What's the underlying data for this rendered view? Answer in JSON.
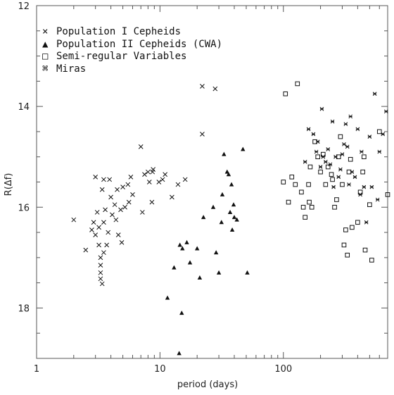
{
  "chart_data": {
    "type": "scatter",
    "title": "",
    "xlabel": "period (days)",
    "ylabel": "R(Δf)",
    "xscale": "log",
    "xlim": [
      1,
      700
    ],
    "ylim": [
      19,
      12
    ],
    "y_inverted": true,
    "grid": false,
    "legend_position": "top-left",
    "x_ticks": [
      "1",
      "10",
      "100"
    ],
    "y_ticks": [
      "12",
      "14",
      "16",
      "18"
    ],
    "series": [
      {
        "name": "Population I Cepheids",
        "marker": "cross",
        "points": [
          [
            2.0,
            16.25
          ],
          [
            2.5,
            16.85
          ],
          [
            2.8,
            16.45
          ],
          [
            2.9,
            16.3
          ],
          [
            3.0,
            16.55
          ],
          [
            3.0,
            15.4
          ],
          [
            3.1,
            16.1
          ],
          [
            3.2,
            16.4
          ],
          [
            3.2,
            16.75
          ],
          [
            3.3,
            17.0
          ],
          [
            3.3,
            17.15
          ],
          [
            3.3,
            17.3
          ],
          [
            3.3,
            17.42
          ],
          [
            3.4,
            17.52
          ],
          [
            3.4,
            15.65
          ],
          [
            3.5,
            15.45
          ],
          [
            3.5,
            16.3
          ],
          [
            3.5,
            16.9
          ],
          [
            3.6,
            16.05
          ],
          [
            3.7,
            16.75
          ],
          [
            3.8,
            16.5
          ],
          [
            3.9,
            15.45
          ],
          [
            4.0,
            15.8
          ],
          [
            4.1,
            16.15
          ],
          [
            4.3,
            15.95
          ],
          [
            4.4,
            16.25
          ],
          [
            4.5,
            15.65
          ],
          [
            4.6,
            16.55
          ],
          [
            4.8,
            16.05
          ],
          [
            4.9,
            16.7
          ],
          [
            5.0,
            15.6
          ],
          [
            5.2,
            16.0
          ],
          [
            5.5,
            15.55
          ],
          [
            5.6,
            15.9
          ],
          [
            5.8,
            15.4
          ],
          [
            6.0,
            15.75
          ],
          [
            7.0,
            14.8
          ],
          [
            7.2,
            16.1
          ],
          [
            7.5,
            15.35
          ],
          [
            8.0,
            15.3
          ],
          [
            8.2,
            15.5
          ],
          [
            8.6,
            15.9
          ],
          [
            8.7,
            15.3
          ],
          [
            8.8,
            15.25
          ],
          [
            9.8,
            15.5
          ],
          [
            10.5,
            15.45
          ],
          [
            11.0,
            15.35
          ],
          [
            12.5,
            15.8
          ],
          [
            14.0,
            15.55
          ],
          [
            16.0,
            15.45
          ],
          [
            22.0,
            13.6
          ],
          [
            22.0,
            14.55
          ],
          [
            28.0,
            13.65
          ]
        ]
      },
      {
        "name": "Population II Cepheids (CWA)",
        "marker": "triangle",
        "points": [
          [
            11.5,
            17.8
          ],
          [
            13.0,
            17.2
          ],
          [
            14.3,
            18.9
          ],
          [
            14.5,
            16.75
          ],
          [
            15.0,
            18.1
          ],
          [
            15.2,
            16.82
          ],
          [
            16.5,
            16.7
          ],
          [
            17.5,
            17.1
          ],
          [
            20.0,
            16.82
          ],
          [
            21.0,
            17.4
          ],
          [
            22.5,
            16.2
          ],
          [
            27.0,
            16.0
          ],
          [
            28.5,
            16.9
          ],
          [
            30.0,
            17.3
          ],
          [
            31.5,
            16.3
          ],
          [
            32.0,
            15.75
          ],
          [
            33.0,
            14.95
          ],
          [
            35.0,
            15.3
          ],
          [
            36.0,
            15.35
          ],
          [
            37.0,
            16.1
          ],
          [
            38.0,
            15.55
          ],
          [
            38.5,
            16.45
          ],
          [
            39.5,
            15.95
          ],
          [
            40.0,
            16.2
          ],
          [
            42.0,
            16.25
          ],
          [
            47.0,
            14.85
          ],
          [
            51.0,
            17.3
          ]
        ]
      },
      {
        "name": "Semi-regular Variables",
        "marker": "square",
        "points": [
          [
            100,
            15.5
          ],
          [
            104,
            13.75
          ],
          [
            110,
            15.9
          ],
          [
            117,
            15.4
          ],
          [
            125,
            15.55
          ],
          [
            130,
            13.55
          ],
          [
            140,
            15.7
          ],
          [
            145,
            16.0
          ],
          [
            150,
            16.2
          ],
          [
            160,
            15.55
          ],
          [
            162,
            15.9
          ],
          [
            165,
            15.2
          ],
          [
            170,
            16.0
          ],
          [
            180,
            14.7
          ],
          [
            190,
            15.0
          ],
          [
            200,
            15.3
          ],
          [
            210,
            14.95
          ],
          [
            220,
            15.55
          ],
          [
            230,
            15.2
          ],
          [
            245,
            15.35
          ],
          [
            250,
            15.45
          ],
          [
            260,
            16.0
          ],
          [
            270,
            15.85
          ],
          [
            280,
            15.0
          ],
          [
            290,
            14.6
          ],
          [
            300,
            15.55
          ],
          [
            310,
            16.75
          ],
          [
            320,
            16.45
          ],
          [
            330,
            16.95
          ],
          [
            340,
            15.3
          ],
          [
            350,
            15.05
          ],
          [
            360,
            16.4
          ],
          [
            400,
            16.3
          ],
          [
            420,
            15.7
          ],
          [
            440,
            15.3
          ],
          [
            450,
            15.0
          ],
          [
            460,
            16.85
          ],
          [
            500,
            15.95
          ],
          [
            520,
            17.05
          ],
          [
            600,
            14.5
          ],
          [
            700,
            15.75
          ]
        ]
      },
      {
        "name": "Miras",
        "marker": "star",
        "points": [
          [
            150,
            15.1
          ],
          [
            160,
            14.45
          ],
          [
            175,
            14.55
          ],
          [
            185,
            14.9
          ],
          [
            190,
            14.7
          ],
          [
            200,
            15.2
          ],
          [
            205,
            14.05
          ],
          [
            210,
            15.0
          ],
          [
            220,
            15.1
          ],
          [
            230,
            14.85
          ],
          [
            240,
            15.15
          ],
          [
            250,
            14.3
          ],
          [
            255,
            15.6
          ],
          [
            265,
            15.0
          ],
          [
            280,
            15.4
          ],
          [
            290,
            15.25
          ],
          [
            300,
            14.95
          ],
          [
            310,
            14.75
          ],
          [
            320,
            14.35
          ],
          [
            330,
            14.8
          ],
          [
            340,
            15.55
          ],
          [
            350,
            14.2
          ],
          [
            360,
            15.3
          ],
          [
            380,
            15.4
          ],
          [
            400,
            14.45
          ],
          [
            420,
            15.75
          ],
          [
            430,
            14.9
          ],
          [
            450,
            15.6
          ],
          [
            470,
            16.3
          ],
          [
            500,
            14.6
          ],
          [
            520,
            15.6
          ],
          [
            550,
            13.75
          ],
          [
            580,
            15.85
          ],
          [
            600,
            14.9
          ],
          [
            640,
            14.55
          ],
          [
            680,
            14.1
          ]
        ]
      }
    ]
  },
  "legend": {
    "items": [
      {
        "symbol": "×",
        "label": "Population I Cepheids"
      },
      {
        "symbol": "▲",
        "label": "Population II Cepheids (CWA)"
      },
      {
        "symbol": "□",
        "label": "Semi-regular Variables"
      },
      {
        "symbol": "⌘",
        "label": "Miras"
      }
    ]
  },
  "colors": {
    "marks": "#111111",
    "frame": "#555555",
    "background": "#ffffff"
  }
}
